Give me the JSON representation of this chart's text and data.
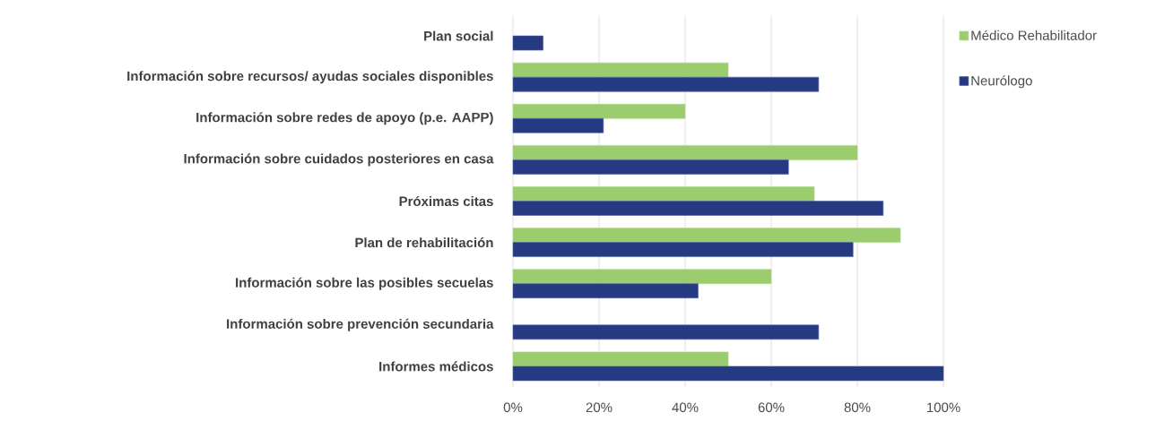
{
  "chart_data": {
    "type": "bar",
    "orientation": "horizontal",
    "categories": [
      "Plan social",
      "Información sobre recursos/ ayudas sociales disponibles",
      "Información sobre redes de apoyo (p.e. AAPP)",
      "Información sobre cuidados posteriores en casa",
      "Próximas citas",
      "Plan de rehabilitación",
      "Información sobre las posibles secuelas",
      "Información sobre prevención secundaria",
      "Informes médicos"
    ],
    "series": [
      {
        "name": "Médico Rehabilitador",
        "color": "#9bcd6f",
        "values": [
          null,
          50,
          40,
          80,
          70,
          90,
          60,
          null,
          50
        ]
      },
      {
        "name": "Neurólogo",
        "color": "#263a84",
        "values": [
          7,
          71,
          21,
          64,
          86,
          79,
          43,
          71,
          100
        ]
      }
    ],
    "xlim": [
      0,
      100
    ],
    "xticks": [
      {
        "value": 0,
        "label": "0%"
      },
      {
        "value": 20,
        "label": "20%"
      },
      {
        "value": 40,
        "label": "40%"
      },
      {
        "value": 60,
        "label": "60%"
      },
      {
        "value": 80,
        "label": "80%"
      },
      {
        "value": 100,
        "label": "100%"
      }
    ],
    "grid": "x",
    "legend": "right"
  }
}
